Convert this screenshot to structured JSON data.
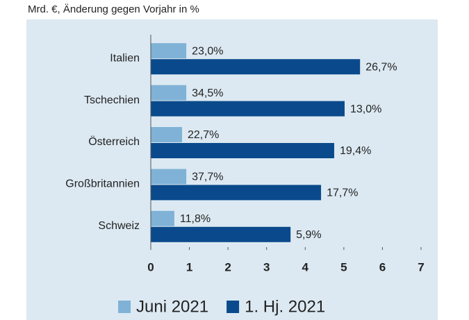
{
  "chart_data": {
    "type": "barh",
    "subtitle": "Mrd. €, Änderung gegen Vorjahr in %",
    "categories": [
      "Italien",
      "Tschechien",
      "Österreich",
      "Großbritannien",
      "Schweiz"
    ],
    "series": [
      {
        "name": "Juni 2021",
        "color": "#7fb2d6",
        "values": [
          0.92,
          0.92,
          0.81,
          0.92,
          0.61
        ],
        "change_labels": [
          "23,0%",
          "34,5%",
          "22,7%",
          "37,7%",
          "11,8%"
        ]
      },
      {
        "name": "1. Hj. 2021",
        "color": "#0a4a8c",
        "values": [
          5.42,
          5.02,
          4.75,
          4.41,
          3.62
        ],
        "change_labels": [
          "26,7%",
          "13,0%",
          "19,4%",
          "17,7%",
          "5,9%"
        ]
      }
    ],
    "xlim": [
      0,
      7
    ],
    "xticks": [
      0,
      1,
      2,
      3,
      4,
      5,
      6,
      7
    ],
    "legend": "bottom"
  }
}
